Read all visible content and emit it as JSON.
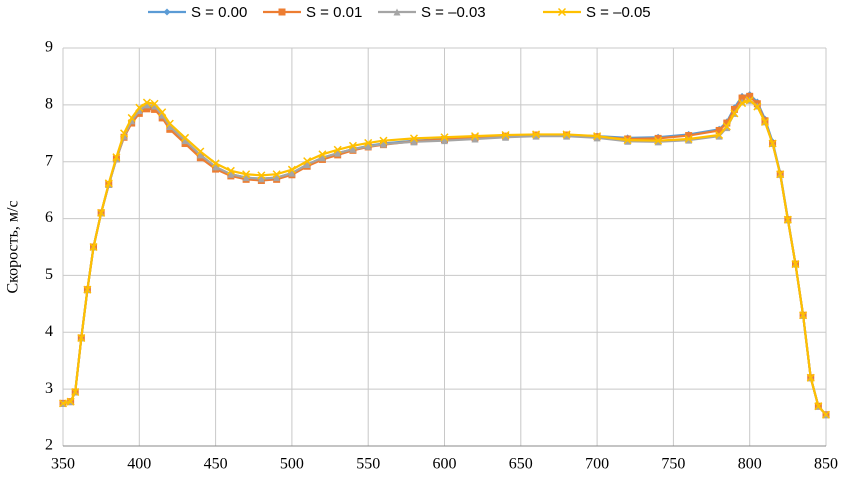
{
  "chart_data": {
    "type": "line",
    "y_label": "Скорость, м/с",
    "x": [
      350,
      355,
      358,
      362,
      366,
      370,
      375,
      380,
      385,
      390,
      395,
      400,
      405,
      410,
      415,
      420,
      430,
      440,
      450,
      460,
      470,
      480,
      490,
      500,
      510,
      520,
      530,
      540,
      550,
      560,
      580,
      600,
      620,
      640,
      660,
      680,
      700,
      720,
      740,
      760,
      780,
      785,
      790,
      795,
      800,
      805,
      810,
      815,
      820,
      825,
      830,
      835,
      840,
      845,
      850
    ],
    "series": [
      {
        "name": "S = 0.00",
        "color": "#5b9bd5",
        "marker": "diamond",
        "values": [
          2.75,
          2.78,
          2.95,
          3.9,
          4.75,
          5.5,
          6.1,
          6.6,
          7.05,
          7.45,
          7.7,
          7.88,
          7.97,
          7.95,
          7.8,
          7.6,
          7.35,
          7.1,
          6.9,
          6.78,
          6.72,
          6.7,
          6.72,
          6.8,
          6.95,
          7.07,
          7.15,
          7.22,
          7.28,
          7.32,
          7.37,
          7.4,
          7.42,
          7.45,
          7.47,
          7.47,
          7.45,
          7.42,
          7.43,
          7.48,
          7.57,
          7.7,
          7.95,
          8.15,
          8.18,
          8.05,
          7.75,
          7.35,
          6.8,
          6,
          5.2,
          4.3,
          3.2,
          2.7,
          2.55
        ]
      },
      {
        "name": "S = 0.01",
        "color": "#ed7d31",
        "marker": "square",
        "values": [
          2.75,
          2.78,
          2.95,
          3.9,
          4.75,
          5.5,
          6.1,
          6.6,
          7.05,
          7.43,
          7.68,
          7.85,
          7.93,
          7.92,
          7.77,
          7.57,
          7.32,
          7.07,
          6.87,
          6.75,
          6.69,
          6.67,
          6.69,
          6.77,
          6.92,
          7.04,
          7.12,
          7.2,
          7.26,
          7.3,
          7.36,
          7.39,
          7.42,
          7.45,
          7.47,
          7.47,
          7.44,
          7.4,
          7.41,
          7.46,
          7.55,
          7.68,
          7.92,
          8.12,
          8.15,
          8.02,
          7.72,
          7.32,
          6.78,
          5.98,
          5.2,
          4.3,
          3.2,
          2.7,
          2.55
        ]
      },
      {
        "name": "S = –0.03",
        "color": "#a5a5a5",
        "marker": "triangle",
        "values": [
          2.75,
          2.78,
          2.95,
          3.9,
          4.75,
          5.5,
          6.1,
          6.6,
          7.05,
          7.45,
          7.72,
          7.9,
          8.0,
          7.98,
          7.82,
          7.62,
          7.37,
          7.12,
          6.91,
          6.78,
          6.72,
          6.7,
          6.72,
          6.8,
          6.95,
          7.07,
          7.15,
          7.22,
          7.27,
          7.31,
          7.35,
          7.37,
          7.4,
          7.43,
          7.45,
          7.45,
          7.42,
          7.36,
          7.35,
          7.38,
          7.45,
          7.6,
          7.85,
          8.05,
          8.08,
          7.98,
          7.7,
          7.32,
          6.78,
          5.98,
          5.2,
          4.3,
          3.2,
          2.7,
          2.55
        ]
      },
      {
        "name": "S = –0.05",
        "color": "#ffc000",
        "marker": "x",
        "values": [
          2.75,
          2.78,
          2.95,
          3.9,
          4.75,
          5.5,
          6.1,
          6.62,
          7.08,
          7.5,
          7.77,
          7.95,
          8.04,
          8.02,
          7.87,
          7.67,
          7.42,
          7.18,
          6.97,
          6.84,
          6.78,
          6.76,
          6.78,
          6.86,
          7.01,
          7.13,
          7.21,
          7.28,
          7.33,
          7.37,
          7.41,
          7.43,
          7.45,
          7.47,
          7.48,
          7.48,
          7.45,
          7.38,
          7.37,
          7.4,
          7.47,
          7.62,
          7.85,
          8.03,
          8.08,
          7.97,
          7.7,
          7.32,
          6.78,
          5.98,
          5.2,
          4.3,
          3.2,
          2.7,
          2.55
        ]
      }
    ],
    "xlim": [
      350,
      850
    ],
    "xticks": [
      350,
      400,
      450,
      500,
      550,
      600,
      650,
      700,
      750,
      800,
      850
    ],
    "ylim": [
      2,
      9
    ],
    "yticks": [
      2,
      3,
      4,
      5,
      6,
      7,
      8,
      9
    ],
    "grid": true,
    "legend": "top"
  }
}
